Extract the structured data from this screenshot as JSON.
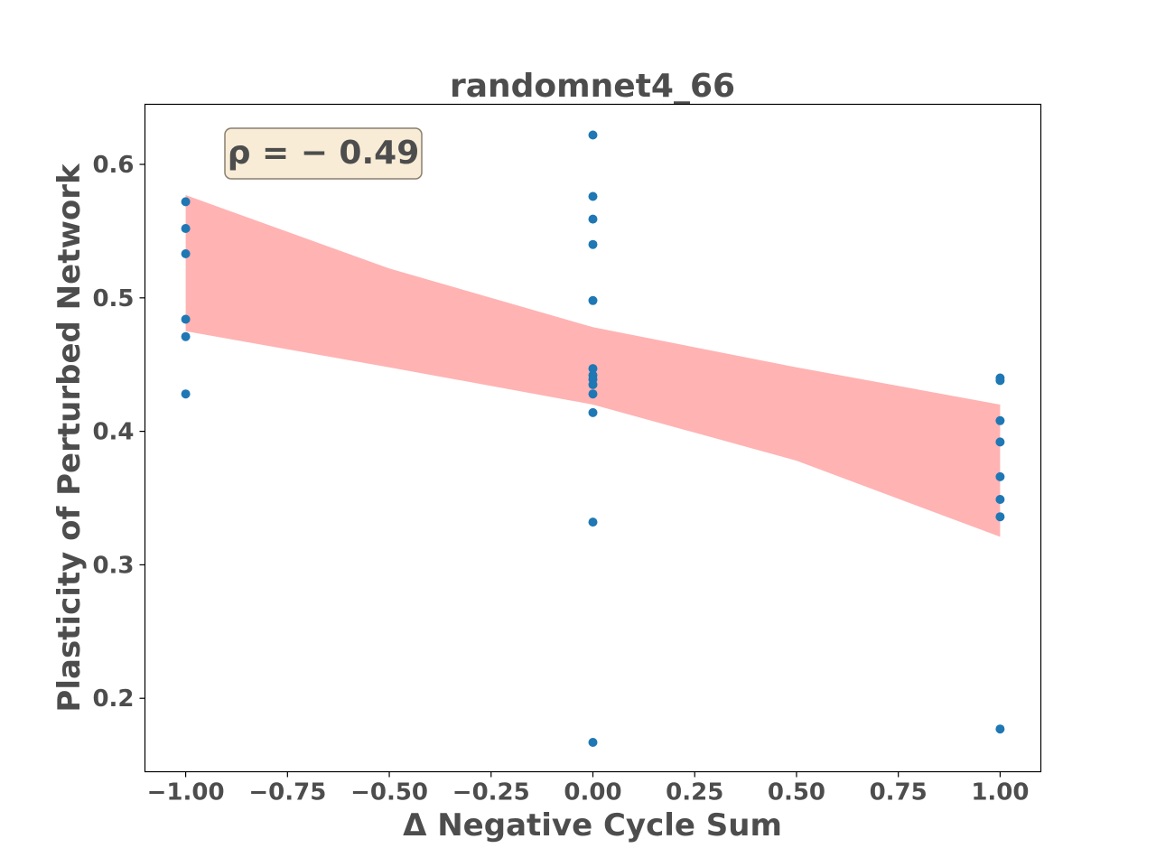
{
  "chart_data": {
    "type": "scatter",
    "title": "randomnet4_66",
    "xlabel": "Δ Negative Cycle Sum",
    "ylabel": "Plasticity of Perturbed Network",
    "xlim": [
      -1.1,
      1.1
    ],
    "ylim": [
      0.145,
      0.645
    ],
    "xticks": [
      -1.0,
      -0.75,
      -0.5,
      -0.25,
      0.0,
      0.25,
      0.5,
      0.75,
      1.0
    ],
    "xtick_labels": [
      "−1.00",
      "−0.75",
      "−0.50",
      "−0.25",
      "0.00",
      "0.25",
      "0.50",
      "0.75",
      "1.00"
    ],
    "yticks": [
      0.2,
      0.3,
      0.4,
      0.5,
      0.6
    ],
    "ytick_labels": [
      "0.2",
      "0.3",
      "0.4",
      "0.5",
      "0.6"
    ],
    "grid": false,
    "annotation": "ρ = − 0.49",
    "annotation_bg": "#f8ecd6",
    "annotation_border": "#8a7f70",
    "point_color": "#1f77b4",
    "band_color": "#ffb3b3",
    "text_color": "#4d4d4d",
    "points": [
      {
        "x": -1.0,
        "y": 0.572
      },
      {
        "x": -1.0,
        "y": 0.552
      },
      {
        "x": -1.0,
        "y": 0.533
      },
      {
        "x": -1.0,
        "y": 0.484
      },
      {
        "x": -1.0,
        "y": 0.471
      },
      {
        "x": -1.0,
        "y": 0.428
      },
      {
        "x": 0.0,
        "y": 0.622
      },
      {
        "x": 0.0,
        "y": 0.576
      },
      {
        "x": 0.0,
        "y": 0.559
      },
      {
        "x": 0.0,
        "y": 0.54
      },
      {
        "x": 0.0,
        "y": 0.498
      },
      {
        "x": 0.0,
        "y": 0.447
      },
      {
        "x": 0.0,
        "y": 0.442
      },
      {
        "x": 0.0,
        "y": 0.439
      },
      {
        "x": 0.0,
        "y": 0.435
      },
      {
        "x": 0.0,
        "y": 0.428
      },
      {
        "x": 0.0,
        "y": 0.414
      },
      {
        "x": 0.0,
        "y": 0.332
      },
      {
        "x": 0.0,
        "y": 0.167
      },
      {
        "x": 1.0,
        "y": 0.44
      },
      {
        "x": 1.0,
        "y": 0.438
      },
      {
        "x": 1.0,
        "y": 0.408
      },
      {
        "x": 1.0,
        "y": 0.392
      },
      {
        "x": 1.0,
        "y": 0.366
      },
      {
        "x": 1.0,
        "y": 0.349
      },
      {
        "x": 1.0,
        "y": 0.336
      },
      {
        "x": 1.0,
        "y": 0.177
      }
    ],
    "confidence_band": {
      "x": [
        -1.0,
        -0.5,
        0.0,
        0.5,
        1.0
      ],
      "upper": [
        0.577,
        0.522,
        0.478,
        0.448,
        0.42
      ],
      "lower": [
        0.475,
        0.448,
        0.42,
        0.378,
        0.321
      ]
    }
  }
}
